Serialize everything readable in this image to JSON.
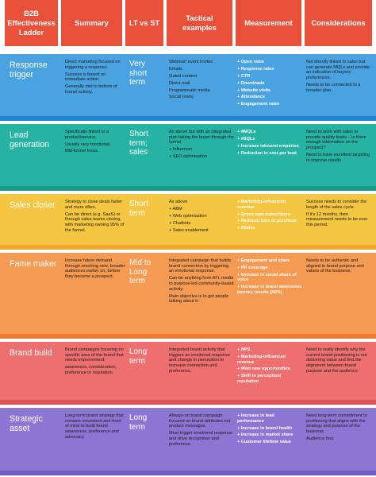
{
  "headers": [
    "B2B Effectiveness Ladder",
    "Summary",
    "LT vs ST",
    "Tactical examples",
    "Measurement",
    "Considerations"
  ],
  "rows": [
    {
      "name": "Response trigger",
      "color": "#4aa3e0",
      "bar_color": "#1f86d6",
      "summary": [
        "Direct marketing focused on triggering a response.",
        "Success is based on immediate action.",
        "Generally mid to bottom of funnel activity."
      ],
      "lt_st": "Very short term",
      "tactics": [
        "Webinar/ event invites",
        "Emails",
        "Gated content",
        "Direct mail",
        "Programmatic media",
        "Social (own)"
      ],
      "measurement": [
        "+ Open rates",
        "+ Response rates",
        "+ CTR",
        "+ Downloads",
        "+ Website visits",
        "+ Attendance",
        "+ Engagement rates"
      ],
      "considerations": [
        "Not directly linked to sales but can generate MQLs and provide an indication of buyers' preferences.",
        "Needs to be connected to a broader plan."
      ]
    },
    {
      "name": "Lead generation",
      "color": "#27b3a3",
      "bar_color": "#1a9a8a",
      "summary": [
        "Specifically linked to a product/service.",
        "Usually very functional.",
        "Mid-funnel focus."
      ],
      "lt_st": "Short term; sales",
      "tactics": [
        "As above but with an integrated plan taking the buyer through the funnel.",
        "+ Influencer",
        "+ SEO optimisation"
      ],
      "measurement": [
        "+ #MQLs",
        "+ #SQLs",
        "+ Increase inbound enquiries",
        "+ Reduction in cost per lead"
      ],
      "considerations": [
        "Need to work with sales to provide quality leads – is there enough information on the prospect?",
        "Need to have excellent targeting to improve results."
      ]
    },
    {
      "name": "Sales closer",
      "color": "#f5c642",
      "bar_color": "#f0a92a",
      "summary": [
        "Strategy to close deals faster and more often.",
        "Can be direct (e.g. SaaS) or through sales teams closing, with marketing owning 95% of the funnel."
      ],
      "lt_st": "Short term",
      "tactics": [
        "As above",
        "+ ABM",
        "+ Web optimisation",
        "+ Chatbots",
        "+ Sales enablement"
      ],
      "measurement": [
        "+ Marketing-influenced revenue",
        "+ Gross new subscribers",
        "+ Reduced time to purchase",
        "+ #Sales"
      ],
      "considerations": [
        "Success needs to consider the length of the sales cycle.",
        "If it's 12 months, then measurement needs to be over this period."
      ]
    },
    {
      "name": "Fame maker",
      "color": "#f59a52",
      "bar_color": "#ef7a30",
      "summary": [
        "Increase future demand through reaching new, broader audiences earlier on, before they become a prospect."
      ],
      "lt_st": "Mid to Long term",
      "tactics": [
        "Integrated campaign that builds brand connection by triggering an emotional response.",
        "Can be anything from ATL media to purpose-led community-based activity.",
        "Main objective is to get people talking about it."
      ],
      "measurement": [
        "+ Engagement and share",
        "+ PR coverage",
        "+ Increase in social share of voice",
        "+ Increase in brand awareness (survey results (NPS)"
      ],
      "considerations": [
        "Needs to be authentic and aligned to brand purpose and values of the business."
      ]
    },
    {
      "name": "Brand build",
      "color": "#ee6f70",
      "bar_color": "#e35356",
      "summary": [
        "Brand campaigns focusing on specific area of the brand that needs improvement:",
        "awareness, consideration, preference or reputation."
      ],
      "lt_st": "Long term",
      "tactics": [
        "Integrated brand activity that triggers an emotional response and change in perception to increase connection and preference."
      ],
      "measurement": [
        "+ NPS",
        "+ Marketing-influenced revenue",
        "+ #Net new opportunities",
        "+ Shift in perception/ reputation"
      ],
      "considerations": [
        "Need to really identify why the current brand positioning is not delivering value and find the alignment between brand purpose and the audience."
      ]
    },
    {
      "name": "Strategic asset",
      "color": "#8d76d3",
      "bar_color": "#7259c4",
      "summary": [
        "Long-term brand strategy that remains consistent and front of mind to build brand awareness, preference and advocacy."
      ],
      "lt_st": "Long term",
      "tactics": [
        "Always-on brand campaign focused on brand attributes not product messages.",
        "Must trigger emotional response and drive recognition and preference."
      ],
      "measurement": [
        "+ Increase in lead performance",
        "+ Increase in brand health",
        "+ Increase in market share",
        "+ Customer lifetime value"
      ],
      "considerations": [
        "Need long-term commitment to positioning that aligns with the strategy and purpose of the business.",
        "Audience first."
      ]
    }
  ]
}
